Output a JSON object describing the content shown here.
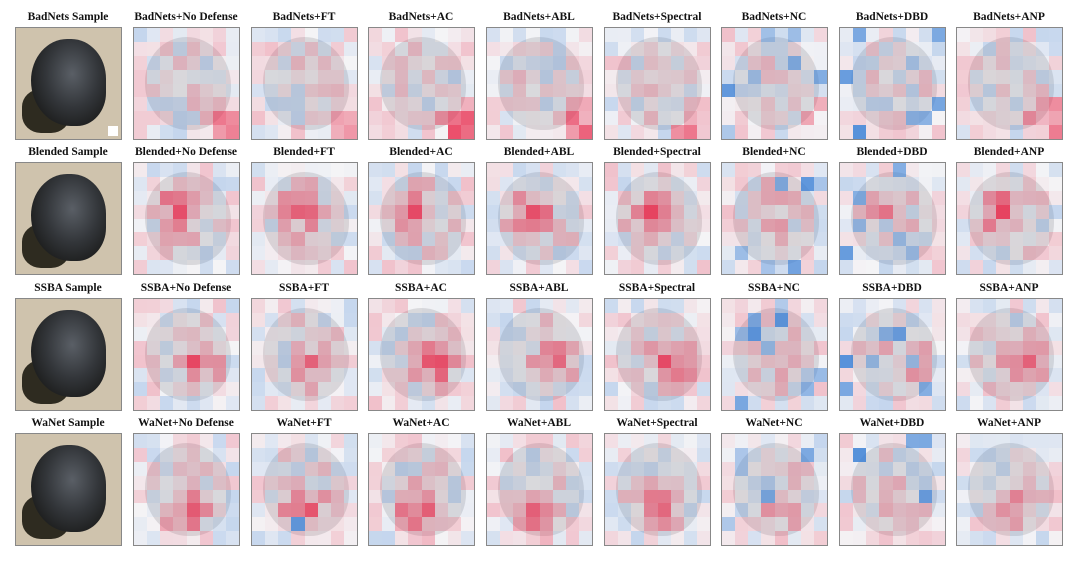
{
  "rows": [
    {
      "attack": "BadNets",
      "titles": [
        "BadNets Sample",
        "BadNets+No Defense",
        "BadNets+FT",
        "BadNets+AC",
        "BadNets+ABL",
        "BadNets+Spectral",
        "BadNets+NC",
        "BadNets+DBD",
        "BadNets+ANP"
      ]
    },
    {
      "attack": "Blended",
      "titles": [
        "Blended Sample",
        "Blended+No Defense",
        "Blended+FT",
        "Blended+AC",
        "Blended+ABL",
        "Blended+Spectral",
        "Blended+NC",
        "Blended+DBD",
        "Blended+ANP"
      ]
    },
    {
      "attack": "SSBA",
      "titles": [
        "SSBA Sample",
        "SSBA+No Defense",
        "SSBA+FT",
        "SSBA+AC",
        "SSBA+ABL",
        "SSBA+Spectral",
        "SSBA+NC",
        "SSBA+DBD",
        "SSBA+ANP"
      ]
    },
    {
      "attack": "WaNet",
      "titles": [
        "WaNet Sample",
        "WaNet+No Defense",
        "WaNet+FT",
        "WaNet+AC",
        "WaNet+ABL",
        "WaNet+Spectral",
        "WaNet+NC",
        "WaNet+DBD",
        "WaNet+ANP"
      ]
    }
  ],
  "colors": {
    "positive": "#e8284a",
    "negative": "#3a7fd5",
    "neutral": "#d9d9dc"
  }
}
